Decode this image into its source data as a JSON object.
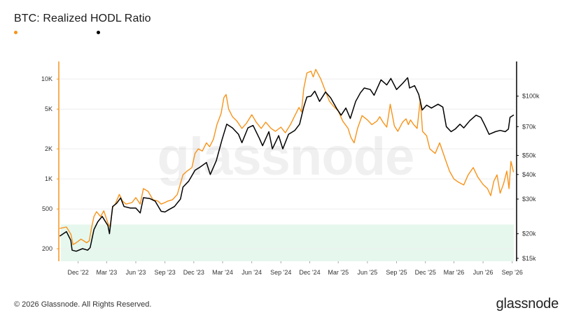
{
  "header": {
    "title": "BTC: Realized HODL Ratio"
  },
  "legend": [
    {
      "color": "#f7931a"
    },
    {
      "color": "#000000"
    }
  ],
  "footer": {
    "copyright": "© 2026 Glassnode. All Rights Reserved.",
    "logo": "glassnode"
  },
  "watermark": "glassnode",
  "chart_data": {
    "type": "line",
    "title": "BTC: Realized HODL Ratio",
    "x_range": [
      "2022-10-01",
      "2026-09-06"
    ],
    "x_ticks": [
      {
        "date": "2022-12-01",
        "label": "Dec '22"
      },
      {
        "date": "2023-03-01",
        "label": "Mar '23"
      },
      {
        "date": "2023-06-01",
        "label": "Jun '23"
      },
      {
        "date": "2023-09-01",
        "label": "Sep '23"
      },
      {
        "date": "2023-12-01",
        "label": "Dec '23"
      },
      {
        "date": "2024-03-01",
        "label": "Mar '24"
      },
      {
        "date": "2024-06-01",
        "label": "Jun '24"
      },
      {
        "date": "2024-09-01",
        "label": "Sep '24"
      },
      {
        "date": "2024-12-01",
        "label": "Dec '24"
      },
      {
        "date": "2025-03-01",
        "label": "Mar '25"
      },
      {
        "date": "2025-06-01",
        "label": "Jun '25"
      },
      {
        "date": "2025-09-01",
        "label": "Sep '25"
      },
      {
        "date": "2025-12-01",
        "label": "Dec '25"
      },
      {
        "date": "2026-03-01",
        "label": "Mar '26"
      },
      {
        "date": "2026-06-01",
        "label": "Jun '26"
      },
      {
        "date": "2026-09-01",
        "label": "Sep '26"
      }
    ],
    "y_left": {
      "scale": "log",
      "range": [
        150,
        15000
      ],
      "ticks": [
        {
          "value": 200,
          "label": "200"
        },
        {
          "value": 500,
          "label": "500"
        },
        {
          "value": 1000,
          "label": "1K"
        },
        {
          "value": 2000,
          "label": "2K"
        },
        {
          "value": 5000,
          "label": "5K"
        },
        {
          "value": 10000,
          "label": "10K"
        }
      ]
    },
    "y_right": {
      "scale": "log",
      "range": [
        14500,
        150000
      ],
      "ticks": [
        {
          "value": 15000,
          "label": "$15k"
        },
        {
          "value": 20000,
          "label": "$20k"
        },
        {
          "value": 30000,
          "label": "$30k"
        },
        {
          "value": 40000,
          "label": "$40k"
        },
        {
          "value": 50000,
          "label": "$50k"
        },
        {
          "value": 70000,
          "label": "$70k"
        },
        {
          "value": 100000,
          "label": "$100k"
        }
      ]
    },
    "band": {
      "y_min": 150,
      "y_max": 350,
      "color": "#e6f7ee"
    },
    "grid": "horizontal",
    "series": [
      {
        "axis": "left",
        "color": "#f7931a",
        "points": [
          [
            "2022-10-05",
            320
          ],
          [
            "2022-10-25",
            330
          ],
          [
            "2022-11-08",
            280
          ],
          [
            "2022-11-15",
            220
          ],
          [
            "2022-11-25",
            230
          ],
          [
            "2022-12-10",
            250
          ],
          [
            "2022-12-28",
            230
          ],
          [
            "2023-01-05",
            240
          ],
          [
            "2023-01-12",
            320
          ],
          [
            "2023-01-20",
            420
          ],
          [
            "2023-01-28",
            470
          ],
          [
            "2023-02-10",
            420
          ],
          [
            "2023-02-20",
            480
          ],
          [
            "2023-03-05",
            360
          ],
          [
            "2023-03-12",
            330
          ],
          [
            "2023-03-20",
            520
          ],
          [
            "2023-03-28",
            560
          ],
          [
            "2023-04-10",
            700
          ],
          [
            "2023-04-20",
            600
          ],
          [
            "2023-05-01",
            560
          ],
          [
            "2023-05-20",
            580
          ],
          [
            "2023-06-01",
            650
          ],
          [
            "2023-06-15",
            560
          ],
          [
            "2023-06-25",
            800
          ],
          [
            "2023-07-10",
            750
          ],
          [
            "2023-07-25",
            620
          ],
          [
            "2023-08-10",
            600
          ],
          [
            "2023-08-20",
            560
          ],
          [
            "2023-09-01",
            580
          ],
          [
            "2023-09-10",
            600
          ],
          [
            "2023-09-25",
            620
          ],
          [
            "2023-10-10",
            700
          ],
          [
            "2023-10-20",
            900
          ],
          [
            "2023-10-28",
            1100
          ],
          [
            "2023-11-10",
            1200
          ],
          [
            "2023-11-25",
            1300
          ],
          [
            "2023-12-05",
            1800
          ],
          [
            "2023-12-15",
            2000
          ],
          [
            "2023-12-28",
            1900
          ],
          [
            "2024-01-10",
            2300
          ],
          [
            "2024-01-20",
            2100
          ],
          [
            "2024-02-01",
            2500
          ],
          [
            "2024-02-12",
            3500
          ],
          [
            "2024-02-25",
            4500
          ],
          [
            "2024-03-05",
            6500
          ],
          [
            "2024-03-12",
            7000
          ],
          [
            "2024-03-20",
            5000
          ],
          [
            "2024-04-01",
            4200
          ],
          [
            "2024-04-15",
            3800
          ],
          [
            "2024-05-01",
            3200
          ],
          [
            "2024-05-15",
            3600
          ],
          [
            "2024-06-01",
            4400
          ],
          [
            "2024-06-15",
            3700
          ],
          [
            "2024-07-01",
            3200
          ],
          [
            "2024-07-15",
            3700
          ],
          [
            "2024-08-01",
            3200
          ],
          [
            "2024-08-15",
            3000
          ],
          [
            "2024-09-01",
            3300
          ],
          [
            "2024-09-15",
            2900
          ],
          [
            "2024-10-01",
            3500
          ],
          [
            "2024-10-15",
            4300
          ],
          [
            "2024-10-28",
            5200
          ],
          [
            "2024-11-05",
            4700
          ],
          [
            "2024-11-12",
            8000
          ],
          [
            "2024-11-22",
            11500
          ],
          [
            "2024-12-05",
            12000
          ],
          [
            "2024-12-12",
            10500
          ],
          [
            "2024-12-20",
            12500
          ],
          [
            "2025-01-05",
            10000
          ],
          [
            "2025-01-20",
            7500
          ],
          [
            "2025-02-01",
            6000
          ],
          [
            "2025-02-15",
            5300
          ],
          [
            "2025-03-01",
            4800
          ],
          [
            "2025-03-15",
            3800
          ],
          [
            "2025-04-01",
            3200
          ],
          [
            "2025-04-10",
            2600
          ],
          [
            "2025-04-20",
            2300
          ],
          [
            "2025-05-01",
            3200
          ],
          [
            "2025-05-15",
            4300
          ],
          [
            "2025-06-01",
            3900
          ],
          [
            "2025-06-15",
            3500
          ],
          [
            "2025-07-01",
            3800
          ],
          [
            "2025-07-10",
            4200
          ],
          [
            "2025-07-20",
            3700
          ],
          [
            "2025-08-01",
            3300
          ],
          [
            "2025-08-12",
            5600
          ],
          [
            "2025-08-25",
            3400
          ],
          [
            "2025-09-05",
            3000
          ],
          [
            "2025-09-20",
            3700
          ],
          [
            "2025-10-01",
            4000
          ],
          [
            "2025-10-08",
            3500
          ],
          [
            "2025-10-15",
            3900
          ],
          [
            "2025-10-25",
            3500
          ],
          [
            "2025-11-05",
            3200
          ],
          [
            "2025-11-15",
            6300
          ],
          [
            "2025-11-22",
            3000
          ],
          [
            "2025-12-05",
            2700
          ],
          [
            "2025-12-15",
            2000
          ],
          [
            "2026-01-01",
            1800
          ],
          [
            "2026-01-15",
            2300
          ],
          [
            "2026-02-01",
            1600
          ],
          [
            "2026-02-15",
            1200
          ],
          [
            "2026-03-01",
            1000
          ],
          [
            "2026-03-15",
            930
          ],
          [
            "2026-04-01",
            870
          ],
          [
            "2026-04-15",
            1100
          ],
          [
            "2026-05-01",
            1300
          ],
          [
            "2026-05-15",
            1050
          ],
          [
            "2026-06-01",
            880
          ],
          [
            "2026-06-15",
            800
          ],
          [
            "2026-06-25",
            680
          ],
          [
            "2026-07-05",
            950
          ],
          [
            "2026-07-15",
            1100
          ],
          [
            "2026-07-25",
            720
          ],
          [
            "2026-08-05",
            900
          ],
          [
            "2026-08-15",
            1200
          ],
          [
            "2026-08-22",
            800
          ],
          [
            "2026-08-28",
            1500
          ],
          [
            "2026-09-05",
            1180
          ]
        ]
      },
      {
        "axis": "right",
        "color": "#000000",
        "points": [
          [
            "2022-10-05",
            19500
          ],
          [
            "2022-10-25",
            20500
          ],
          [
            "2022-11-08",
            18500
          ],
          [
            "2022-11-12",
            16500
          ],
          [
            "2022-11-25",
            16300
          ],
          [
            "2022-12-15",
            16800
          ],
          [
            "2022-12-31",
            16500
          ],
          [
            "2023-01-08",
            17000
          ],
          [
            "2023-01-20",
            21000
          ],
          [
            "2023-02-01",
            23000
          ],
          [
            "2023-02-15",
            24500
          ],
          [
            "2023-03-05",
            22000
          ],
          [
            "2023-03-10",
            20000
          ],
          [
            "2023-03-20",
            27500
          ],
          [
            "2023-04-01",
            28500
          ],
          [
            "2023-04-14",
            30400
          ],
          [
            "2023-04-25",
            27500
          ],
          [
            "2023-05-15",
            27000
          ],
          [
            "2023-06-01",
            27000
          ],
          [
            "2023-06-15",
            25500
          ],
          [
            "2023-06-25",
            30500
          ],
          [
            "2023-07-15",
            30200
          ],
          [
            "2023-08-01",
            29300
          ],
          [
            "2023-08-20",
            26000
          ],
          [
            "2023-09-01",
            25800
          ],
          [
            "2023-09-15",
            26600
          ],
          [
            "2023-10-01",
            27500
          ],
          [
            "2023-10-20",
            30000
          ],
          [
            "2023-10-28",
            34500
          ],
          [
            "2023-11-15",
            37000
          ],
          [
            "2023-12-05",
            42000
          ],
          [
            "2023-12-20",
            43500
          ],
          [
            "2024-01-10",
            46000
          ],
          [
            "2024-01-22",
            40000
          ],
          [
            "2024-02-10",
            47000
          ],
          [
            "2024-02-28",
            60000
          ],
          [
            "2024-03-14",
            72000
          ],
          [
            "2024-04-01",
            69000
          ],
          [
            "2024-04-20",
            64000
          ],
          [
            "2024-05-01",
            58000
          ],
          [
            "2024-05-20",
            69000
          ],
          [
            "2024-06-05",
            71000
          ],
          [
            "2024-06-25",
            61000
          ],
          [
            "2024-07-05",
            56000
          ],
          [
            "2024-07-25",
            66000
          ],
          [
            "2024-08-05",
            54000
          ],
          [
            "2024-08-25",
            63000
          ],
          [
            "2024-09-07",
            54000
          ],
          [
            "2024-09-25",
            64000
          ],
          [
            "2024-10-15",
            67000
          ],
          [
            "2024-10-30",
            72000
          ],
          [
            "2024-11-12",
            88000
          ],
          [
            "2024-11-22",
            99000
          ],
          [
            "2024-12-05",
            100000
          ],
          [
            "2024-12-17",
            106000
          ],
          [
            "2025-01-01",
            94000
          ],
          [
            "2025-01-20",
            105000
          ],
          [
            "2025-02-05",
            98000
          ],
          [
            "2025-02-25",
            86000
          ],
          [
            "2025-03-10",
            80000
          ],
          [
            "2025-03-25",
            87000
          ],
          [
            "2025-04-08",
            77000
          ],
          [
            "2025-04-25",
            94000
          ],
          [
            "2025-05-10",
            104000
          ],
          [
            "2025-05-22",
            110000
          ],
          [
            "2025-06-10",
            108000
          ],
          [
            "2025-06-22",
            101000
          ],
          [
            "2025-07-14",
            121000
          ],
          [
            "2025-08-01",
            114000
          ],
          [
            "2025-08-14",
            123000
          ],
          [
            "2025-09-01",
            108000
          ],
          [
            "2025-09-20",
            116000
          ],
          [
            "2025-10-06",
            124000
          ],
          [
            "2025-10-12",
            110000
          ],
          [
            "2025-10-28",
            113000
          ],
          [
            "2025-11-10",
            102000
          ],
          [
            "2025-11-21",
            85000
          ],
          [
            "2025-12-05",
            90000
          ],
          [
            "2025-12-20",
            87000
          ],
          [
            "2026-01-10",
            91000
          ],
          [
            "2026-01-25",
            88000
          ],
          [
            "2026-02-05",
            70000
          ],
          [
            "2026-02-20",
            66000
          ],
          [
            "2026-03-05",
            68000
          ],
          [
            "2026-03-20",
            72000
          ],
          [
            "2026-04-01",
            69000
          ],
          [
            "2026-04-20",
            75000
          ],
          [
            "2026-05-10",
            80000
          ],
          [
            "2026-05-25",
            78000
          ],
          [
            "2026-06-05",
            72000
          ],
          [
            "2026-06-20",
            64000
          ],
          [
            "2026-07-10",
            66000
          ],
          [
            "2026-07-25",
            67000
          ],
          [
            "2026-08-10",
            66000
          ],
          [
            "2026-08-20",
            68000
          ],
          [
            "2026-08-25",
            78000
          ],
          [
            "2026-09-05",
            80000
          ]
        ]
      }
    ]
  }
}
